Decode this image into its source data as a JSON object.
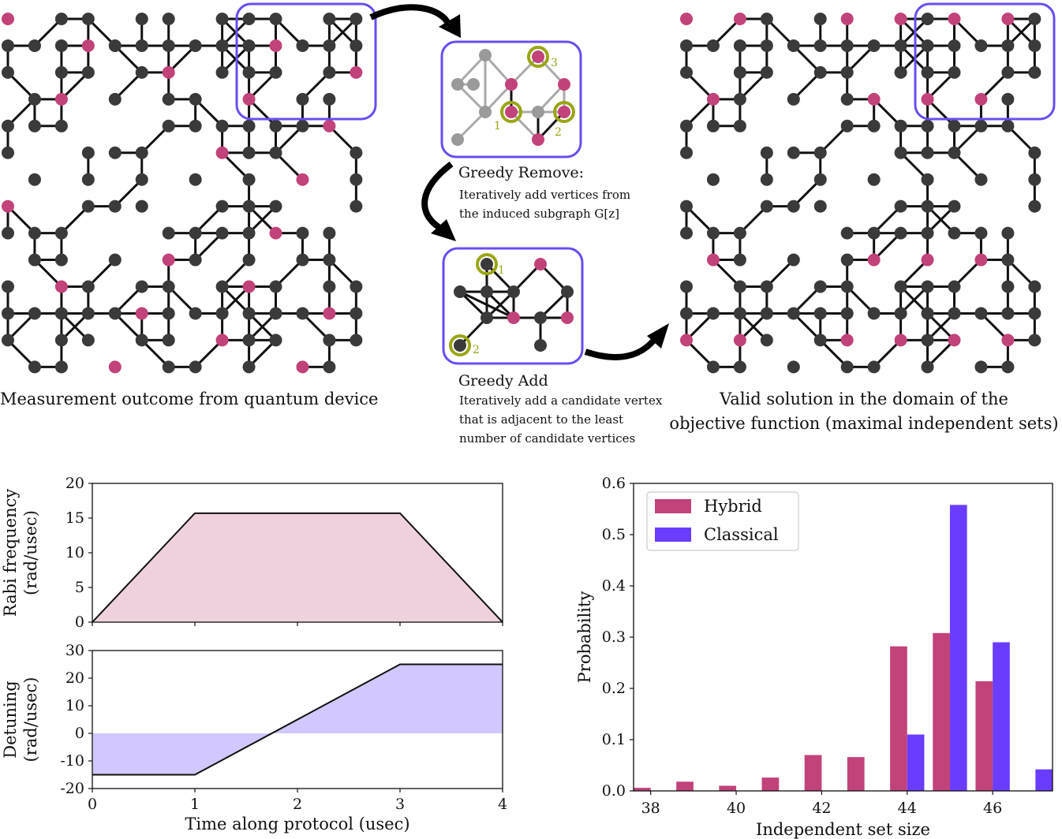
{
  "captions": {
    "left": "Measurement outcome from quantum device",
    "right_line1": "Valid solution in the domain of the",
    "right_line2": "objective function (maximal independent sets)"
  },
  "greedy_remove": {
    "title": "Greedy Remove:",
    "desc_line1": "Iteratively add vertices from",
    "desc_line2": "the induced subgraph G[z]",
    "markers": [
      "1",
      "2",
      "3"
    ]
  },
  "greedy_add": {
    "title": "Greedy Add",
    "desc_line1": "Iteratively add a candidate vertex",
    "desc_line2": "that is adjacent to the least",
    "desc_line3": "number of candidate vertices",
    "markers": [
      "1",
      "2"
    ]
  },
  "colors": {
    "node_dark": "#3a3a3a",
    "node_pink": "#c2427a",
    "frame": "#6a4cf0",
    "marker_ring": "#9aa514",
    "hybrid": "#c2427a",
    "classical": "#6a3cff",
    "rabi_fill": "#efd1dd",
    "detuning_fill": "#d2c8ff"
  },
  "chart_data": [
    {
      "type": "area",
      "ylabel": "Rabi frequency\n(rad/usec)",
      "x": [
        0,
        1,
        3,
        4
      ],
      "y": [
        0,
        15.7,
        15.7,
        0
      ],
      "xlim": [
        0,
        4
      ],
      "ylim": [
        0,
        20
      ],
      "yticks": [
        0,
        5,
        10,
        15,
        20
      ],
      "ytick_labels": [
        "0",
        "5",
        "10",
        "15",
        "20"
      ],
      "xticks": [
        0,
        1,
        2,
        3,
        4
      ],
      "grid": false
    },
    {
      "type": "area",
      "xlabel": "Time along protocol (usec)",
      "ylabel": "Detuning\n(rad/usec)",
      "x": [
        0,
        1,
        3,
        4
      ],
      "y": [
        -15,
        -15,
        25,
        25
      ],
      "xlim": [
        0,
        4
      ],
      "ylim": [
        -20,
        30
      ],
      "yticks": [
        -20,
        -10,
        0,
        10,
        20,
        30
      ],
      "ytick_labels": [
        "-20",
        "-10",
        "0",
        "10",
        "20",
        "30"
      ],
      "xticks": [
        0,
        1,
        2,
        3,
        4
      ],
      "xtick_labels": [
        "0",
        "1",
        "2",
        "3",
        "4"
      ],
      "grid": false
    },
    {
      "type": "bar",
      "xlabel": "Independent set size",
      "ylabel": "Probability",
      "legend": "top-left",
      "xlim": [
        37.6,
        47.4
      ],
      "ylim": [
        0,
        0.6
      ],
      "xticks": [
        38,
        40,
        42,
        44,
        46
      ],
      "xtick_labels": [
        "38",
        "40",
        "42",
        "44",
        "46"
      ],
      "yticks": [
        0,
        0.1,
        0.2,
        0.3,
        0.4,
        0.5,
        0.6
      ],
      "ytick_labels": [
        "0.0",
        "0.1",
        "0.2",
        "0.3",
        "0.4",
        "0.5",
        "0.6"
      ],
      "x": [
        38,
        39,
        40,
        41,
        42,
        43,
        44,
        45,
        46,
        47
      ],
      "series": [
        {
          "name": "Hybrid",
          "values": [
            0.006,
            0.018,
            0.01,
            0.026,
            0.07,
            0.066,
            0.282,
            0.308,
            0.214,
            0
          ]
        },
        {
          "name": "Classical",
          "values": [
            0,
            0,
            0,
            0,
            0,
            0,
            0.11,
            0.558,
            0.29,
            0.042
          ]
        }
      ],
      "grid": false
    }
  ]
}
